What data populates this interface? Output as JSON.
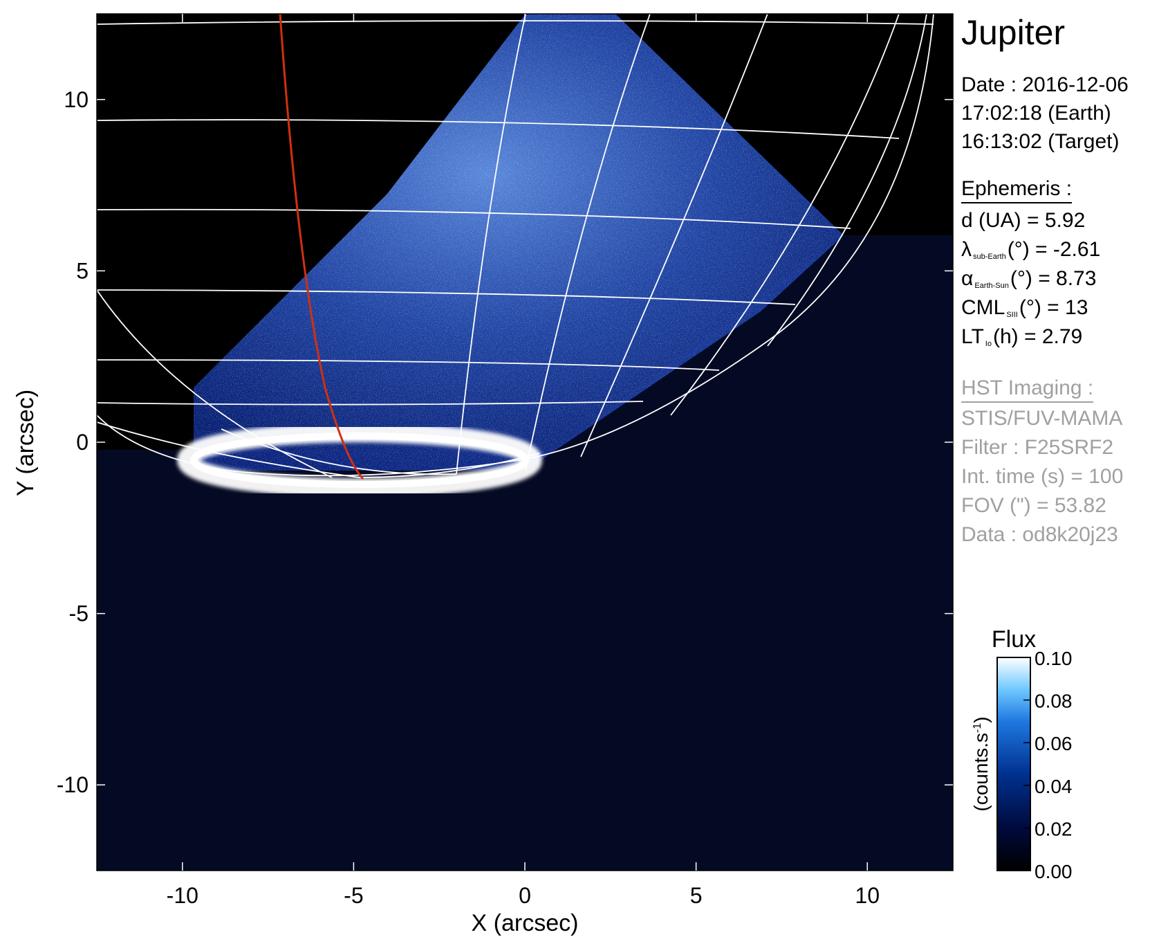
{
  "chart_data": {
    "type": "heatmap",
    "title": "Jupiter",
    "xlabel": "X (arcsec)",
    "ylabel": "Y (arcsec)",
    "xlim": [
      -12.5,
      12.5
    ],
    "ylim": [
      -12.5,
      12.5
    ],
    "x_ticks": [
      -10,
      -5,
      0,
      5,
      10
    ],
    "y_ticks": [
      10,
      5,
      0,
      -5,
      -10
    ],
    "x_tick_labels": [
      "-10",
      "-5",
      "0",
      "5",
      "10"
    ],
    "y_tick_labels": [
      "10",
      "5",
      "0",
      "-5",
      "-10"
    ],
    "colorbar": {
      "title": "Flux",
      "units": "(counts.s",
      "units_sup": "-1",
      "units_close": ")",
      "range": [
        0.0,
        0.1
      ],
      "ticks": [
        "0.10",
        "0.08",
        "0.06",
        "0.04",
        "0.02",
        "0.00"
      ],
      "colors": [
        "#000000",
        "#000a3c",
        "#00308f",
        "#1e78e0",
        "#70c8ff",
        "#ffffff"
      ]
    },
    "grid": true,
    "overlay": "planetary latitude/longitude grid with oval footprint and red Io footpath"
  },
  "info": {
    "title": "Jupiter",
    "date_line": "Date : 2016-12-06",
    "time_earth": "17:02:18 (Earth)",
    "time_target": "16:13:02 (Target)",
    "ephemeris_header": "Ephemeris :",
    "d_ua": "d (UA)    = 5.92",
    "lambda_sym": "λ",
    "lambda_sub": "sub-Earth",
    "lambda_rest": "(°) = -2.61",
    "alpha_sym": "α",
    "alpha_sub": "Earth-Sun",
    "alpha_rest": "(°) = 8.73",
    "cml_sym": "CML",
    "cml_sub": "SIII",
    "cml_rest": "(°) = 13",
    "lt_sym": "LT",
    "lt_sub": "Io",
    "lt_rest": "(h) = 2.79",
    "hst_header": "HST Imaging :",
    "instrument": "STIS/FUV-MAMA",
    "filter": "Filter : F25SRF2",
    "int_time": "Int. time (s) = 100",
    "fov": "FOV (\") = 53.82",
    "data_id": "Data : od8k20j23"
  },
  "colors": {
    "grid_line": "#ffffff",
    "io_footpath": "#d03010",
    "background": "#000000",
    "annotation_gray": "#a0a0a0"
  }
}
